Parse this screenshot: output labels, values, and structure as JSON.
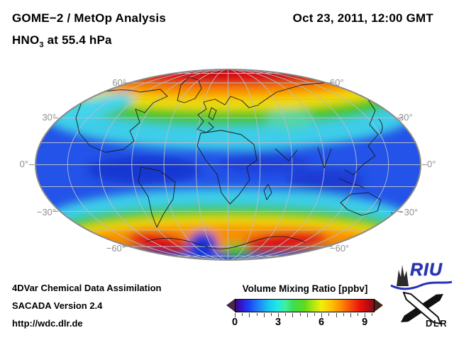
{
  "header": {
    "title_line1": "GOME−2 / MetOp Analysis",
    "title_line2_main": "HNO",
    "title_line2_sub": "3",
    "title_line2_rest": " at 55.4 hPa",
    "datetime": "Oct 23, 2011, 12:00 GMT"
  },
  "map": {
    "lat_labels_left": [
      "60°",
      "30°",
      "0°",
      "−30°",
      "−60°"
    ],
    "lat_labels_right": [
      "60°",
      "30°",
      "0°",
      "−30°",
      "−60°"
    ]
  },
  "colorbar": {
    "title": "Volume Mixing Ratio [ppbv]",
    "units": "ppbv",
    "min": 0,
    "max": 10,
    "tick_values": [
      0,
      3,
      6,
      9
    ],
    "left_overflow_color": "#46284a",
    "right_overflow_color": "#49241c",
    "gradient_stops": [
      {
        "pct": 0,
        "color": "#3a0a80"
      },
      {
        "pct": 4,
        "color": "#3514c8"
      },
      {
        "pct": 9,
        "color": "#1b3cf2"
      },
      {
        "pct": 16,
        "color": "#1e7df8"
      },
      {
        "pct": 24,
        "color": "#18c8f0"
      },
      {
        "pct": 30,
        "color": "#22e8e4"
      },
      {
        "pct": 36,
        "color": "#40eea0"
      },
      {
        "pct": 42,
        "color": "#3ede4c"
      },
      {
        "pct": 50,
        "color": "#62d81e"
      },
      {
        "pct": 56,
        "color": "#aae80e"
      },
      {
        "pct": 62,
        "color": "#f2ee0a"
      },
      {
        "pct": 69,
        "color": "#fcc405"
      },
      {
        "pct": 76,
        "color": "#fc8e04"
      },
      {
        "pct": 83,
        "color": "#f84e08"
      },
      {
        "pct": 90,
        "color": "#ea120c"
      },
      {
        "pct": 95,
        "color": "#c00c10"
      },
      {
        "pct": 100,
        "color": "#80101a"
      }
    ]
  },
  "footer": {
    "line1": "4DVar Chemical Data Assimilation",
    "line2": "SACADA Version 2.4",
    "line3": "http://wdc.dlr.de"
  },
  "logos": {
    "riu_text": "RIU",
    "dlr_text": "DLR"
  },
  "chart_data": {
    "type": "heatmap",
    "title": "GOME−2 / MetOp Analysis — HNO3 at 55.4 hPa",
    "datetime": "Oct 23, 2011, 12:00 GMT",
    "projection": "mollweide ellipse, whole globe, centered near 10°E",
    "colorbar": {
      "label": "Volume Mixing Ratio [ppbv]",
      "range": [
        0,
        10
      ],
      "ticks": [
        0,
        3,
        6,
        9
      ],
      "overflow_arrows": true
    },
    "graticule": {
      "lat_step_deg": 15,
      "lon_step_deg": 30,
      "labeled_lats": [
        60,
        30,
        0,
        -30,
        -60
      ]
    },
    "field_summary": [
      {
        "region": "Arctic cap 70–90°N",
        "value_ppbv": "8–10 (red, dark-red maxima at pole)"
      },
      {
        "region": "60–70°N band",
        "value_ppbv": "5–8 (orange/yellow ring over Greenland, Scandinavia, Siberia)"
      },
      {
        "region": "45–60°N",
        "value_ppbv": "3–5 (green to cyan)"
      },
      {
        "region": "30–45°N",
        "value_ppbv": "2–3 (cyan to light blue)"
      },
      {
        "region": "Tropics 25°N–25°S",
        "value_ppbv": "1–2 (blue, darker patches near equator)"
      },
      {
        "region": "35–50°S",
        "value_ppbv": "2–3 (cyan band)"
      },
      {
        "region": "50–65°S ring",
        "value_ppbv": "5–9 (yellow/orange/red; maxima south of Indian Ocean and SE Pacific/Atlantic sectors)"
      },
      {
        "region": "Weddell Sea sector 65–80°S",
        "value_ppbv": "1–2 (dark blue pocket)"
      },
      {
        "region": "Antarctic interior",
        "value_ppbv": "3–6 (green/yellow mixed)"
      }
    ]
  }
}
